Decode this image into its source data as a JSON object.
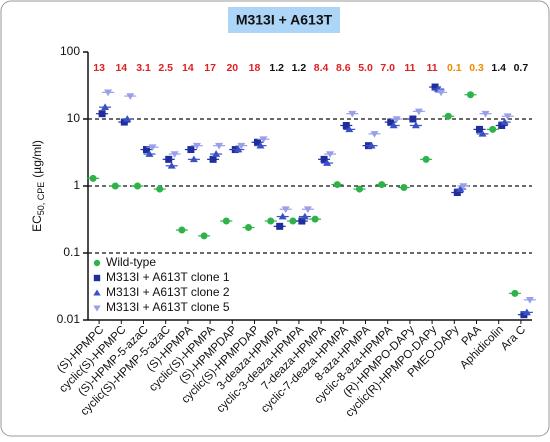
{
  "chart_data": {
    "type": "scatter",
    "title": "M313I + A613T",
    "y_label": {
      "main": "EC",
      "sub": "50, CPE",
      "unit": "(µg/ml)"
    },
    "log_y": true,
    "ylim": [
      0.01,
      100
    ],
    "yticks": [
      0.01,
      0.1,
      1,
      10,
      100
    ],
    "dashed_lines": [
      0.1,
      1,
      10
    ],
    "legend_position": "lower left",
    "categories": [
      "(S)-HPMPC",
      "cyclic(S)-HPMPC",
      "(S)-HPMP-5-azaC",
      "cyclic(S)-HPMP-5-azaC",
      "(S)-HPMPA",
      "cyclic(S)-HPMPA",
      "(S)-HPMPDAP",
      "cyclic(S)-HPMPDAP",
      "3-deaza-HPMPA",
      "cyclic-3-deaza-HPMPA",
      "7-deaza-HPMPA",
      "cyclic-7-deaza-HPMPA",
      "8-aza-HPMPA",
      "cyclic-8-aza-HPMPA",
      "(R)-HPMPO-DAPy",
      "cyclic(R)-HPMPO-DAPy",
      "PMEO-DAPy",
      "PAA",
      "Aphidicolin",
      "Ara C"
    ],
    "fold_labels": [
      "13",
      "14",
      "3.1",
      "2.5",
      "14",
      "17",
      "20",
      "18",
      "1.2",
      "1.2",
      "8.4",
      "8.6",
      "5.0",
      "7.0",
      "11",
      "11",
      "0.1",
      "0.3",
      "1.4",
      "0.7"
    ],
    "fold_colors": [
      "#e02020",
      "#e02020",
      "#e02020",
      "#e02020",
      "#e02020",
      "#e02020",
      "#e02020",
      "#e02020",
      "#111111",
      "#111111",
      "#e02020",
      "#e02020",
      "#e02020",
      "#e02020",
      "#e02020",
      "#e02020",
      "#f08a00",
      "#f08a00",
      "#111111",
      "#111111"
    ],
    "series": [
      {
        "name": "Wild-type",
        "color": "#2db34a",
        "marker": "circle",
        "values": [
          1.3,
          1.0,
          1.0,
          0.9,
          0.22,
          0.18,
          0.3,
          0.24,
          0.3,
          0.3,
          0.32,
          1.05,
          0.9,
          1.05,
          0.95,
          2.5,
          11,
          23,
          7,
          0.025
        ]
      },
      {
        "name": "M313I + A613T clone 1",
        "color": "#1f2e9c",
        "marker": "square",
        "values": [
          12,
          9,
          3.5,
          2.5,
          3.5,
          2.5,
          3.5,
          4.5,
          0.25,
          0.3,
          2.5,
          8,
          4,
          9,
          10,
          30,
          0.8,
          7,
          8,
          0.012
        ]
      },
      {
        "name": "M313I + A613T clone 2",
        "color": "#3a50c4",
        "marker": "triangle",
        "values": [
          15,
          10,
          3,
          2,
          2.5,
          3,
          3.5,
          4,
          0.35,
          0.35,
          2.2,
          7,
          4,
          8,
          8,
          28,
          0.9,
          6,
          9,
          0.013
        ]
      },
      {
        "name": "M313I + A613T clone 5",
        "color": "#9a9fe8",
        "marker": "triangle-down",
        "values": [
          25,
          22,
          3.8,
          3,
          4,
          4,
          4,
          5,
          0.45,
          0.45,
          3,
          12,
          6,
          10,
          13,
          25,
          1.0,
          12,
          11,
          0.02
        ]
      }
    ]
  }
}
